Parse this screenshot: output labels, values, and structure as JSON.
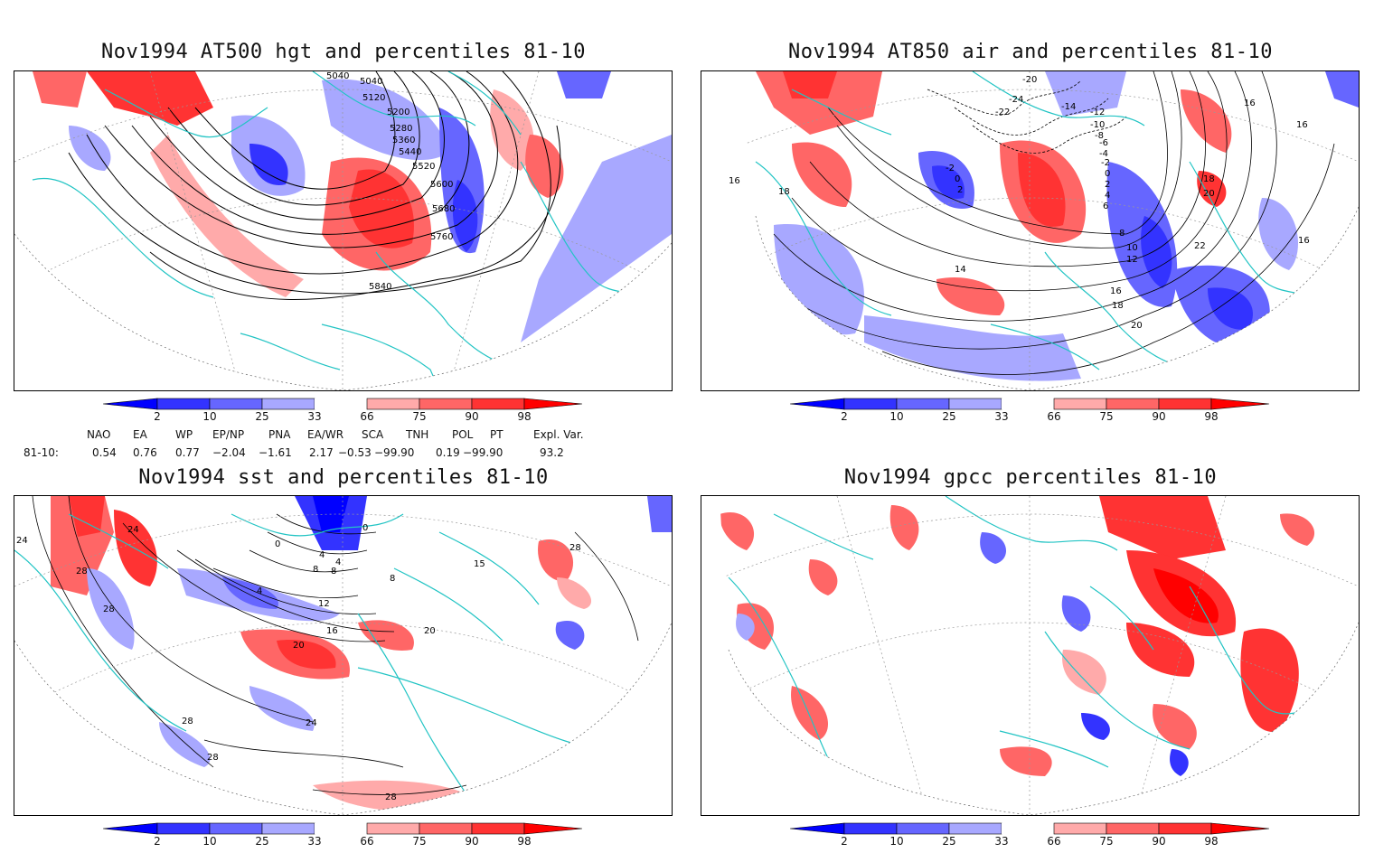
{
  "panels": [
    {
      "id": "p1",
      "title": "Nov1994 AT500 hgt and percentiles 81-10",
      "contour_labels": [
        "5040",
        "5040",
        "5120",
        "5200",
        "5280",
        "5360",
        "5440",
        "5520",
        "5600",
        "5680",
        "5760",
        "5840"
      ]
    },
    {
      "id": "p2",
      "title": "Nov1994 AT850 air and percentiles 81-10",
      "contour_labels": [
        "-20",
        "-24",
        "-22",
        "-14",
        "-12",
        "-10",
        "-8",
        "-6",
        "-4",
        "-2",
        "0",
        "2",
        "4",
        "6",
        "8",
        "10",
        "12",
        "14",
        "16",
        "18",
        "20",
        "22",
        "16",
        "16",
        "16",
        "16",
        "18",
        "18",
        "20",
        "-2",
        "0",
        "2"
      ]
    },
    {
      "id": "p3",
      "title": "Nov1994 sst and percentiles 81-10",
      "contour_labels": [
        "24",
        "24",
        "28",
        "28",
        "28",
        "28",
        "28",
        "28",
        "0",
        "0",
        "4",
        "8",
        "12",
        "16",
        "20",
        "20",
        "24",
        "8",
        "15",
        "4",
        "4",
        "8"
      ]
    },
    {
      "id": "p4",
      "title": "Nov1994 gpcc percentiles 81-10",
      "contour_labels": []
    }
  ],
  "colorbar": {
    "labels": [
      "2",
      "10",
      "25",
      "33",
      "66",
      "75",
      "90",
      "98"
    ],
    "colors": {
      "blue_extreme": "#0000ff",
      "blue_strong": "#3333ff",
      "blue_mid": "#6666ff",
      "blue_light": "#a8a8ff",
      "red_light": "#ffaaaa",
      "red_mid": "#ff6666",
      "red_strong": "#ff3333",
      "red_extreme": "#ff0000"
    }
  },
  "indices": {
    "headers": [
      "NAO",
      "EA",
      "WP",
      "EP/NP",
      "PNA",
      "EA/WR",
      "SCA",
      "TNH",
      "POL",
      "PT",
      "Expl. Var."
    ],
    "row_label": "81-10:",
    "values": [
      "0.54",
      "0.76",
      "0.77",
      "−2.04",
      "−1.61",
      "2.17",
      "−0.53",
      "−99.90",
      "0.19",
      "−99.90",
      "93.2"
    ]
  },
  "colors": {
    "coastline": "#22c4c4",
    "contour": "#000000",
    "grid": "#999999"
  }
}
